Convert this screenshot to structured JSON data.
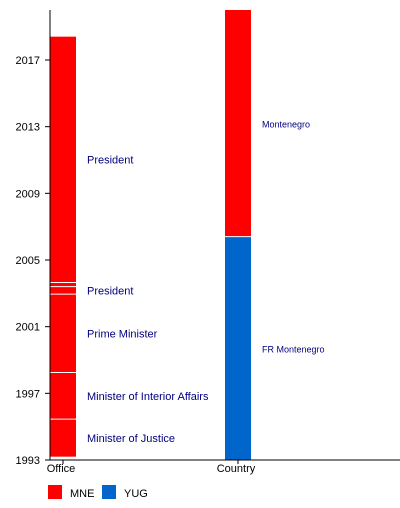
{
  "chart_data": {
    "type": "timeline",
    "y_axis": {
      "min": 1993,
      "max": 2020,
      "ticks": [
        1993,
        1997,
        2001,
        2005,
        2009,
        2013,
        2017
      ]
    },
    "columns": [
      {
        "label": "Office",
        "label_size": "large",
        "segments": [
          {
            "label": "Minister of Justice",
            "start": 1993.2,
            "end": 1995.45,
            "series": "MNE"
          },
          {
            "label": "Minister of Interior Affairs",
            "start": 1995.45,
            "end": 1998.25,
            "series": "MNE"
          },
          {
            "label": "Prime Minister",
            "start": 1998.25,
            "end": 2002.95,
            "series": "MNE"
          },
          {
            "label": "President",
            "start": 2002.95,
            "end": 2003.4,
            "series": "MNE"
          },
          {
            "label": "",
            "start": 2003.4,
            "end": 2003.65,
            "series": "MNE"
          },
          {
            "label": "President",
            "start": 2003.65,
            "end": 2018.4,
            "series": "MNE"
          }
        ]
      },
      {
        "label": "Country",
        "label_size": "small",
        "segments": [
          {
            "label": "FR Montenegro",
            "start": 1993,
            "end": 2006.4,
            "series": "YUG"
          },
          {
            "label": "Montenegro",
            "start": 2006.4,
            "end": 2020,
            "series": "MNE"
          }
        ]
      }
    ],
    "legend": [
      {
        "key": "MNE",
        "label": "MNE",
        "color": "#ff0000"
      },
      {
        "key": "YUG",
        "label": "YUG",
        "color": "#0066cc"
      }
    ],
    "legend_position": "bottom-left",
    "grid": false
  }
}
